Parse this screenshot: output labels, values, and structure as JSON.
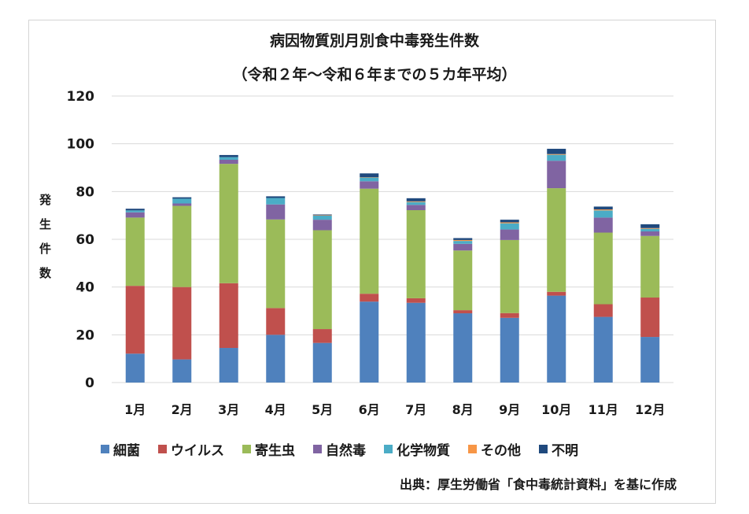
{
  "chart_data": {
    "type": "bar",
    "stacked": true,
    "title": "病因物質別月別食中毒発生件数",
    "subtitle": "（令和２年～令和６年までの５カ年平均）",
    "xlabel": "",
    "ylabel": "発生件数",
    "ylabel_chars": [
      "発",
      "生",
      "件",
      "数"
    ],
    "ylim": [
      0,
      120
    ],
    "yticks": [
      0,
      20,
      40,
      60,
      80,
      100,
      120
    ],
    "grid": true,
    "legend_position": "bottom",
    "categories": [
      "1月",
      "2月",
      "3月",
      "4月",
      "5月",
      "6月",
      "7月",
      "8月",
      "9月",
      "10月",
      "11月",
      "12月"
    ],
    "series": [
      {
        "name": "細菌",
        "color": "#4f81bd",
        "values": [
          12.1,
          9.7,
          14.5,
          20.0,
          16.6,
          33.9,
          33.4,
          29.0,
          27.1,
          36.4,
          27.5,
          19.1
        ]
      },
      {
        "name": "ウイルス",
        "color": "#c0504d",
        "values": [
          28.4,
          30.3,
          27.1,
          11.2,
          5.8,
          3.3,
          1.9,
          1.3,
          2.0,
          1.6,
          5.3,
          16.5
        ]
      },
      {
        "name": "寄生虫",
        "color": "#9bbb59",
        "values": [
          28.6,
          34.0,
          50.0,
          37.1,
          41.4,
          44.0,
          36.9,
          25.0,
          30.6,
          43.4,
          30.0,
          25.8
        ]
      },
      {
        "name": "自然毒",
        "color": "#8064a2",
        "values": [
          2.2,
          1.0,
          1.7,
          6.3,
          4.4,
          3.1,
          2.2,
          2.8,
          4.4,
          11.5,
          6.3,
          1.9
        ]
      },
      {
        "name": "化学物質",
        "color": "#4bacc6",
        "values": [
          0.8,
          2.0,
          1.1,
          2.7,
          1.7,
          1.6,
          1.2,
          1.2,
          2.6,
          2.5,
          3.0,
          1.1
        ]
      },
      {
        "name": "その他",
        "color": "#f79646",
        "values": [
          0.0,
          0.0,
          0.0,
          0.0,
          0.2,
          0.1,
          0.3,
          0.4,
          0.4,
          0.3,
          0.4,
          0.3
        ]
      },
      {
        "name": "不明",
        "color": "#1f497d",
        "values": [
          0.7,
          0.6,
          0.9,
          0.7,
          0.3,
          1.6,
          1.3,
          0.8,
          1.1,
          2.2,
          1.2,
          1.6
        ]
      }
    ],
    "source_note": "出典：厚生労働省「食中毒統計資料」を基に作成"
  }
}
